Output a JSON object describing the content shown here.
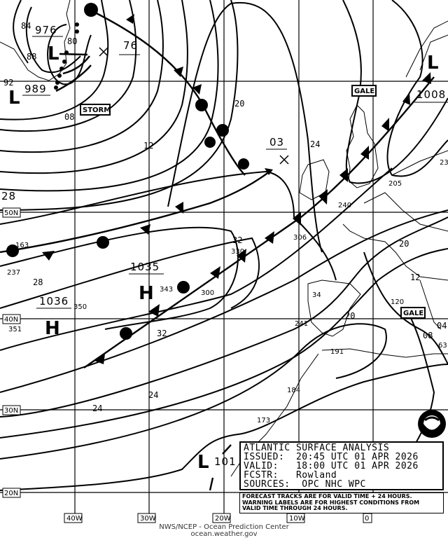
{
  "map": {
    "title": "ATLANTIC SURFACE ANALYSIS",
    "issued": "ISSUED:  20:45 UTC 01 APR 2026",
    "valid": "VALID:   18:00 UTC 01 APR 2026",
    "forecaster": "FCSTR:   Rowland",
    "sources": "SOURCES:  OPC NHC WPC",
    "note_lines": [
      "FORECAST TRACKS ARE FOR VALID TIME + 24 HOURS.",
      "WARNING LABELS ARE FOR HIGHEST CONDITIONS FROM",
      "VALID TIME THROUGH 24 HOURS."
    ]
  },
  "footer": {
    "agency": "NWS/NCEP - Ocean Prediction Center",
    "website": "ocean.weather.gov"
  },
  "grid": {
    "longitudes": [
      "40W",
      "30W",
      "20W",
      "10W",
      "0"
    ],
    "latitudes": [
      "50N",
      "40N",
      "30N",
      "20N"
    ]
  },
  "pressure_centers": [
    {
      "type": "L",
      "value": "976"
    },
    {
      "type": "L",
      "value": "989"
    },
    {
      "type": "H",
      "value": "1035"
    },
    {
      "type": "H",
      "value": "1036"
    },
    {
      "type": "L",
      "value": "1008"
    },
    {
      "type": "L",
      "value": "101"
    },
    {
      "type": "forecast",
      "value": "76"
    },
    {
      "type": "forecast",
      "value": "03"
    }
  ],
  "isobar_labels": [
    "84",
    "88",
    "80",
    "92",
    "08",
    "12",
    "20",
    "24",
    "28",
    "28",
    "32",
    "32",
    "24",
    "24",
    "20",
    "20",
    "12",
    "04",
    "08"
  ],
  "station_labels": [
    "163",
    "237",
    "350",
    "351",
    "343",
    "330",
    "300",
    "306",
    "241",
    "191",
    "184",
    "173",
    "205",
    "240",
    "120",
    "34",
    "63",
    "23"
  ],
  "warnings": [
    "STORM",
    "GALE",
    "GALE"
  ],
  "colors": {
    "ink": "#000000",
    "background": "#ffffff"
  },
  "logo": "NOAA"
}
